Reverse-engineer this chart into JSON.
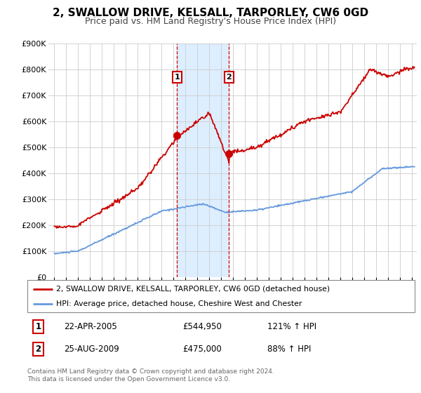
{
  "title": "2, SWALLOW DRIVE, KELSALL, TARPORLEY, CW6 0GD",
  "subtitle": "Price paid vs. HM Land Registry's House Price Index (HPI)",
  "red_label": "2, SWALLOW DRIVE, KELSALL, TARPORLEY, CW6 0GD (detached house)",
  "blue_label": "HPI: Average price, detached house, Cheshire West and Chester",
  "footnote": "Contains HM Land Registry data © Crown copyright and database right 2024.\nThis data is licensed under the Open Government Licence v3.0.",
  "transaction1": {
    "num": "1",
    "date": "22-APR-2005",
    "price": "£544,950",
    "hpi": "121% ↑ HPI"
  },
  "transaction2": {
    "num": "2",
    "date": "25-AUG-2009",
    "price": "£475,000",
    "hpi": "88% ↑ HPI"
  },
  "marker1_year": 2005.3,
  "marker1_price": 544950,
  "marker2_year": 2009.65,
  "marker2_price": 475000,
  "vline1_year": 2005.3,
  "vline2_year": 2009.65,
  "shade1_x0": 2005.3,
  "shade1_x1": 2009.65,
  "ylim": [
    0,
    900000
  ],
  "yticks": [
    0,
    100000,
    200000,
    300000,
    400000,
    500000,
    600000,
    700000,
    800000,
    900000
  ],
  "xlim_start": 1994.5,
  "xlim_end": 2025.4,
  "background_color": "#ffffff",
  "red_color": "#cc0000",
  "blue_color": "#6699dd",
  "shade_color": "#ddeeff",
  "vline_color": "#cc0000",
  "grid_color": "#cccccc",
  "title_fontsize": 11,
  "subtitle_fontsize": 9
}
